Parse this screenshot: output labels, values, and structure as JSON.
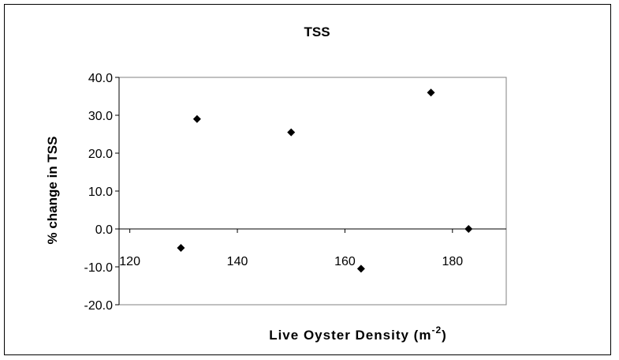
{
  "chart_data": {
    "type": "scatter",
    "title": "TSS",
    "xlabel": {
      "text": "Live Oyster Density (m",
      "superscript": "-2",
      "suffix": ")"
    },
    "ylabel": "% change in TSS",
    "xlim": [
      118,
      190
    ],
    "ylim": [
      -20,
      40
    ],
    "xticks": [
      120,
      140,
      160,
      180
    ],
    "xtick_labels": [
      "120",
      "140",
      "160",
      "180"
    ],
    "yticks": [
      -20,
      -10,
      0,
      10,
      20,
      30,
      40
    ],
    "ytick_labels": [
      "-20.0",
      "-10.0",
      "0.0",
      "10.0",
      "20.0",
      "30.0",
      "40.0"
    ],
    "grid": false,
    "legend": "none",
    "marker": "diamond",
    "marker_color": "#000000",
    "series": [
      {
        "points": [
          {
            "x": 129.5,
            "y": -5.0
          },
          {
            "x": 132.5,
            "y": 29.0
          },
          {
            "x": 150.0,
            "y": 25.5
          },
          {
            "x": 163.0,
            "y": -10.5
          },
          {
            "x": 176.0,
            "y": 36.0
          },
          {
            "x": 183.0,
            "y": 0.0
          }
        ]
      }
    ]
  }
}
